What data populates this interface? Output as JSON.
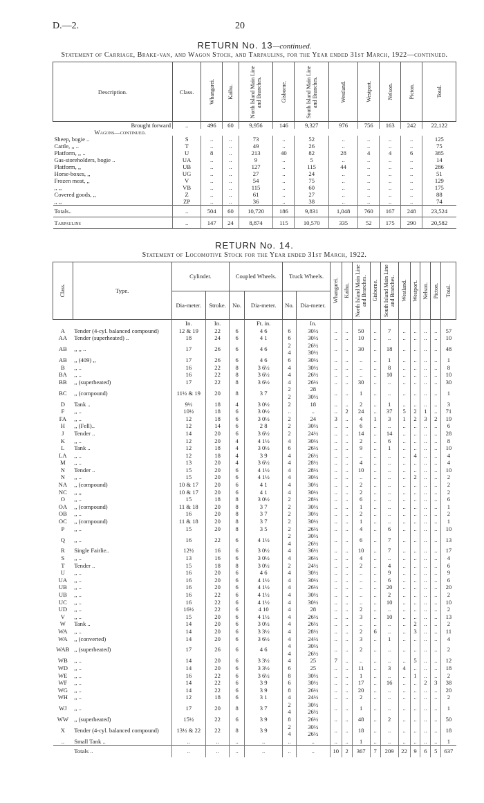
{
  "header": {
    "code": "D.—2.",
    "page": "20"
  },
  "return13": {
    "title": "RETURN No. 13",
    "title_suffix": "—continued.",
    "subtitle": "Statement of Carriage, Brake-van, and Wagon Stock, and Tarpaulins, for the Year ended 31st March, 1922—continued.",
    "columns": [
      "Description.",
      "Class.",
      "Whangarei.",
      "Kaihu.",
      "North Island Main Line and Branches.",
      "Gisborne.",
      "South Island Main Line and Branches.",
      "Westland.",
      "Westport.",
      "Nelson.",
      "Picton.",
      "Total."
    ],
    "brought_forward": [
      "Brought forward",
      "..",
      "496",
      "60",
      "9,956",
      "146",
      "9,327",
      "976",
      "756",
      "163",
      "242",
      "22,122"
    ],
    "section": "Wagons—continued.",
    "rows": [
      [
        "Sheep, bogie ..",
        "S",
        "..",
        "..",
        "73",
        "..",
        "52",
        "..",
        "..",
        "..",
        "..",
        "125"
      ],
      [
        "Cattle, ,, ..",
        "T",
        "..",
        "..",
        "49",
        "..",
        "26",
        "..",
        "..",
        "..",
        "..",
        "75"
      ],
      [
        "Platform, ,, ..",
        "U",
        "8",
        "..",
        "213",
        "40",
        "82",
        "28",
        "4",
        "4",
        "6",
        "385"
      ],
      [
        "Gas-storeholders, bogie ..",
        "UA",
        "..",
        "..",
        "9",
        "..",
        "5",
        "..",
        "..",
        "..",
        "..",
        "14"
      ],
      [
        "Platform, ,,",
        "UB",
        "..",
        "..",
        "127",
        "..",
        "115",
        "44",
        "..",
        "..",
        "..",
        "286"
      ],
      [
        "Horse-boxes, ,,",
        "UG",
        "..",
        "..",
        "27",
        "..",
        "24",
        "..",
        "..",
        "..",
        "..",
        "51"
      ],
      [
        "Frozen meat, ,,",
        "V",
        "..",
        "..",
        "54",
        "..",
        "75",
        "..",
        "..",
        "..",
        "..",
        "129"
      ],
      [
        ",, ,,",
        "VB",
        "..",
        "..",
        "115",
        "..",
        "60",
        "..",
        "..",
        "..",
        "..",
        "175"
      ],
      [
        "Covered goods, ,,",
        "Z",
        "..",
        "..",
        "61",
        "..",
        "27",
        "..",
        "..",
        "..",
        "..",
        "88"
      ],
      [
        ",, ,,",
        "ZP",
        "..",
        "..",
        "36",
        "..",
        "38",
        "..",
        "..",
        "..",
        "..",
        "74"
      ]
    ],
    "totals": [
      "Totals..",
      "..",
      "504",
      "60",
      "10,720",
      "186",
      "9,831",
      "1,048",
      "760",
      "167",
      "248",
      "23,524"
    ],
    "tarpaulins": [
      "Tarpaulins",
      "..",
      "147",
      "24",
      "8,874",
      "115",
      "10,570",
      "335",
      "52",
      "175",
      "290",
      "20,582"
    ]
  },
  "return14": {
    "title": "RETURN No. 14.",
    "subtitle": "Statement of Locomotive Stock for the Year ended 31st March, 1922.",
    "columns": {
      "class": "Class.",
      "type": "Type.",
      "cylinder": "Cylinder.",
      "coupled": "Coupled Wheels.",
      "truck": "Truck Wheels.",
      "diameter": "Dia-meter.",
      "stroke": "Stroke.",
      "no": "No.",
      "districts": [
        "Whangarei.",
        "Kaihu.",
        "North Island Main Line and Branches.",
        "Gisborne.",
        "South Island Main Line and Branches.",
        "Westland.",
        "Westport.",
        "Nelson.",
        "Picton.",
        "Total."
      ]
    },
    "units": [
      "In.",
      "In.",
      "Ft. in.",
      "In."
    ],
    "rows": [
      [
        "A",
        "Tender (4-cyl. balanced compound)",
        "12 & 19",
        "22",
        "6",
        "4 6",
        "6",
        "30½",
        "..",
        "..",
        "50",
        "..",
        "7",
        "..",
        "..",
        "..",
        "..",
        "57"
      ],
      [
        "AA",
        "Tender (superheated) ..",
        "18",
        "24",
        "6",
        "4 1",
        "6",
        "30½",
        "..",
        "..",
        "10",
        "..",
        "..",
        "..",
        "..",
        "..",
        "..",
        "10"
      ],
      [
        "AB",
        ",, ,, ..",
        "17",
        "26",
        "6",
        "4 6",
        "2\n4",
        "26½\n30½",
        "..",
        "..",
        "30",
        "..",
        "18",
        "..",
        "..",
        "..",
        "..",
        "48"
      ],
      [
        "AB",
        ",, (409) ,,",
        "17",
        "26",
        "6",
        "4 6",
        "6",
        "30½",
        "..",
        "..",
        "..",
        "..",
        "1",
        "..",
        "..",
        "..",
        "..",
        "1"
      ],
      [
        "B",
        ",, ..",
        "16",
        "22",
        "8",
        "3 6½",
        "4",
        "30½",
        "..",
        "..",
        "..",
        "..",
        "8",
        "..",
        "..",
        "..",
        "..",
        "8"
      ],
      [
        "BA",
        ",, ..",
        "16",
        "22",
        "8",
        "3 6½",
        "4",
        "26½",
        "..",
        "..",
        "..",
        "..",
        "10",
        "..",
        "..",
        "..",
        "..",
        "10"
      ],
      [
        "BB",
        ",, (superheated)",
        "17",
        "22",
        "8",
        "3 6½",
        "4",
        "26½",
        "..",
        "..",
        "30",
        "..",
        "..",
        "..",
        "..",
        "..",
        "..",
        "30"
      ],
      [
        "BC",
        ",, (compound)",
        "11½ & 19",
        "20",
        "8",
        "3 7",
        "2\n2",
        "28\n30½",
        "..",
        "..",
        "1",
        "..",
        "..",
        "..",
        "..",
        "..",
        "..",
        "1"
      ],
      [
        "D",
        "Tank ..",
        "9½",
        "18",
        "4",
        "3 0½",
        "2",
        "18",
        "..",
        "..",
        "2",
        "..",
        "1",
        "..",
        "..",
        "..",
        "..",
        "3"
      ],
      [
        "F",
        ",, ..",
        "10½",
        "18",
        "6",
        "3 0½",
        "..",
        "..",
        "..",
        "2",
        "24",
        "..",
        "37",
        "5",
        "2",
        "1",
        "..",
        "71"
      ],
      [
        "FA",
        ",, ..",
        "12",
        "18",
        "6",
        "3 0½",
        "2",
        "24",
        "3",
        "..",
        "4",
        "1",
        "3",
        "1",
        "2",
        "3",
        "2",
        "19"
      ],
      [
        "H",
        ",, (Fell)..",
        "12",
        "14",
        "6",
        "2 8",
        "2",
        "30½",
        "..",
        "..",
        "6",
        "..",
        "..",
        "..",
        "..",
        "..",
        "..",
        "6"
      ],
      [
        "J",
        "Tender ..",
        "14",
        "20",
        "6",
        "3 6½",
        "2",
        "24½",
        "..",
        "..",
        "14",
        "..",
        "14",
        "..",
        "..",
        "..",
        "..",
        "28"
      ],
      [
        "K",
        ",, ..",
        "12",
        "20",
        "4",
        "4 1½",
        "4",
        "30½",
        "..",
        "..",
        "2",
        "..",
        "6",
        "..",
        "..",
        "..",
        "..",
        "8"
      ],
      [
        "L",
        "Tank ..",
        "12",
        "18",
        "4",
        "3 0½",
        "6",
        "26½",
        "..",
        "..",
        "9",
        "..",
        "1",
        "..",
        "..",
        "..",
        "..",
        "10"
      ],
      [
        "LA",
        ",, ..",
        "12",
        "18",
        "4",
        "3 9",
        "4",
        "26½",
        "..",
        "..",
        "..",
        "..",
        "..",
        "..",
        "4",
        "..",
        "..",
        "4"
      ],
      [
        "M",
        ",, ..",
        "13",
        "20",
        "4",
        "3 6½",
        "4",
        "28½",
        "..",
        "..",
        "4",
        "..",
        "..",
        "..",
        "..",
        "..",
        "..",
        "4"
      ],
      [
        "N",
        "Tender ..",
        "15",
        "20",
        "6",
        "4 1½",
        "4",
        "28½",
        "..",
        "..",
        "10",
        "..",
        "..",
        "..",
        "..",
        "..",
        "..",
        "10"
      ],
      [
        "N",
        ",, ..",
        "15",
        "20",
        "6",
        "4 1½",
        "4",
        "30½",
        "..",
        "..",
        "..",
        "..",
        "..",
        "..",
        "2",
        "..",
        "..",
        "2"
      ],
      [
        "NA",
        ",, (compound)",
        "10 & 17",
        "20",
        "6",
        "4 1",
        "4",
        "30½",
        "..",
        "..",
        "2",
        "..",
        "..",
        "..",
        "..",
        "..",
        "..",
        "2"
      ],
      [
        "NC",
        ",, ,,",
        "10 & 17",
        "20",
        "6",
        "4 1",
        "4",
        "30½",
        "..",
        "..",
        "2",
        "..",
        "..",
        "..",
        "..",
        "..",
        "..",
        "2"
      ],
      [
        "O",
        ",, ..",
        "15",
        "18",
        "8",
        "3 0½",
        "2",
        "28½",
        "..",
        "..",
        "6",
        "..",
        "..",
        "..",
        "..",
        "..",
        "..",
        "6"
      ],
      [
        "OA",
        ",, (compound)",
        "11 & 18",
        "20",
        "8",
        "3 7",
        "2",
        "30½",
        "..",
        "..",
        "1",
        "..",
        "..",
        "..",
        "..",
        "..",
        "..",
        "1"
      ],
      [
        "OB",
        ",, ..",
        "16",
        "20",
        "8",
        "3 7",
        "2",
        "30½",
        "..",
        "..",
        "2",
        "..",
        "..",
        "..",
        "..",
        "..",
        "..",
        "2"
      ],
      [
        "OC",
        ",, (compound)",
        "11 & 18",
        "20",
        "8",
        "3 7",
        "2",
        "30½",
        "..",
        "..",
        "1",
        "..",
        "..",
        "..",
        "..",
        "..",
        "..",
        "1"
      ],
      [
        "P",
        ",, ..",
        "15",
        "20",
        "8",
        "3 5",
        "2",
        "26½",
        "..",
        "..",
        "4",
        "..",
        "6",
        "..",
        "..",
        "..",
        "..",
        "10"
      ],
      [
        "Q",
        ",, ..",
        "16",
        "22",
        "6",
        "4 1½",
        "2\n4",
        "30½\n26½",
        "..",
        "..",
        "6",
        "..",
        "7",
        "..",
        "..",
        "..",
        "..",
        "13"
      ],
      [
        "R",
        "Single Fairlie..",
        "12½",
        "16",
        "6",
        "3 0½",
        "4",
        "36½",
        "..",
        "..",
        "10",
        "..",
        "7",
        "..",
        "..",
        "..",
        "..",
        "17"
      ],
      [
        "S",
        ",, ..",
        "13",
        "16",
        "6",
        "3 0½",
        "4",
        "36½",
        "..",
        "..",
        "4",
        "..",
        "..",
        "..",
        "..",
        "..",
        "..",
        "4"
      ],
      [
        "T",
        "Tender ..",
        "15",
        "18",
        "8",
        "3 0½",
        "2",
        "24½",
        "..",
        "..",
        "2",
        "..",
        "4",
        "..",
        "..",
        "..",
        "..",
        "6"
      ],
      [
        "U",
        ",, ..",
        "16",
        "20",
        "6",
        "4 6",
        "4",
        "30½",
        "..",
        "..",
        "..",
        "..",
        "9",
        "..",
        "..",
        "..",
        "..",
        "9"
      ],
      [
        "UA",
        ",, ..",
        "16",
        "20",
        "6",
        "4 1½",
        "4",
        "30½",
        "..",
        "..",
        "..",
        "..",
        "6",
        "..",
        "..",
        "..",
        "..",
        "6"
      ],
      [
        "UB",
        ",, ..",
        "16",
        "20",
        "6",
        "4 1½",
        "4",
        "26½",
        "..",
        "..",
        "..",
        "..",
        "20",
        "..",
        "..",
        "..",
        "..",
        "20"
      ],
      [
        "UB",
        ",, ..",
        "16",
        "22",
        "6",
        "4 1½",
        "4",
        "30½",
        "..",
        "..",
        "..",
        "..",
        "2",
        "..",
        "..",
        "..",
        "..",
        "2"
      ],
      [
        "UC",
        ",, ..",
        "16",
        "22",
        "6",
        "4 1½",
        "4",
        "30½",
        "..",
        "..",
        "..",
        "..",
        "10",
        "..",
        "..",
        "..",
        "..",
        "10"
      ],
      [
        "UD",
        ",, ..",
        "16½",
        "22",
        "6",
        "4 10",
        "4",
        "28",
        "..",
        "..",
        "2",
        "..",
        "..",
        "..",
        "..",
        "..",
        "..",
        "2"
      ],
      [
        "V",
        ",, ..",
        "15",
        "20",
        "6",
        "4 1½",
        "4",
        "26½",
        "..",
        "..",
        "3",
        "..",
        "10",
        "..",
        "..",
        "..",
        "..",
        "13"
      ],
      [
        "W",
        "Tank ..",
        "14",
        "20",
        "6",
        "3 0½",
        "4",
        "26½",
        "..",
        "..",
        "..",
        "..",
        "..",
        "..",
        "2",
        "..",
        "..",
        "2"
      ],
      [
        "WA",
        ",, ..",
        "14",
        "20",
        "6",
        "3 3½",
        "4",
        "28½",
        "..",
        "..",
        "2",
        "6",
        "..",
        "..",
        "3",
        "..",
        "..",
        "11"
      ],
      [
        "WA",
        ",, (converted)",
        "14",
        "20",
        "6",
        "3 6½",
        "4",
        "24½",
        "..",
        "..",
        "3",
        "..",
        "1",
        "..",
        "..",
        "..",
        "..",
        "4"
      ],
      [
        "WAB",
        ",, (superheated)",
        "17",
        "26",
        "6",
        "4 6",
        "4\n4",
        "30½\n26½",
        "..",
        "..",
        "2",
        "..",
        "..",
        "..",
        "..",
        "..",
        "..",
        "2"
      ],
      [
        "WB",
        ",, ..",
        "14",
        "20",
        "6",
        "3 3½",
        "4",
        "25",
        "7",
        "..",
        "..",
        "..",
        "..",
        "..",
        "5",
        "..",
        "..",
        "12"
      ],
      [
        "WD",
        ",, ..",
        "14",
        "20",
        "6",
        "3 3½",
        "6",
        "25",
        "..",
        "..",
        "11",
        "..",
        "3",
        "4",
        "..",
        "..",
        "..",
        "18"
      ],
      [
        "WE",
        ",, ..",
        "16",
        "22",
        "6",
        "3 6½",
        "8",
        "30½",
        "..",
        "..",
        "1",
        "..",
        "..",
        "..",
        "1",
        "..",
        "..",
        "2"
      ],
      [
        "WF",
        ",, ..",
        "14",
        "22",
        "6",
        "3 9",
        "6",
        "30½",
        "..",
        "..",
        "17",
        "..",
        "16",
        "..",
        "..",
        "2",
        "3",
        "38"
      ],
      [
        "WG",
        ",, ..",
        "14",
        "22",
        "6",
        "3 9",
        "8",
        "26½",
        "..",
        "..",
        "20",
        "..",
        "..",
        "..",
        "..",
        "..",
        "..",
        "20"
      ],
      [
        "WH",
        ",, ..",
        "12",
        "18",
        "6",
        "3 1",
        "4",
        "24½",
        "..",
        "..",
        "2",
        "..",
        "..",
        "..",
        "..",
        "..",
        "..",
        "2"
      ],
      [
        "WJ",
        ",, ..",
        "17",
        "20",
        "8",
        "3 7",
        "2\n4",
        "30½\n26½",
        "..",
        "..",
        "1",
        "..",
        "..",
        "..",
        "..",
        "..",
        "..",
        "1"
      ],
      [
        "WW",
        ",, (superheated)",
        "15½",
        "22",
        "6",
        "3 9",
        "8",
        "26½",
        "..",
        "..",
        "48",
        "..",
        "2",
        "..",
        "..",
        "..",
        "..",
        "50"
      ],
      [
        "X",
        "Tender (4-cyl. balanced compound)",
        "13½ & 22",
        "22",
        "8",
        "3 9",
        "2\n4",
        "30½\n26½",
        "..",
        "..",
        "18",
        "..",
        "..",
        "..",
        "..",
        "..",
        "..",
        "18"
      ],
      [
        "..",
        "Small Tank ..",
        "..",
        "..",
        "..",
        "..",
        "..",
        "..",
        "..",
        "..",
        "1",
        "..",
        "..",
        "..",
        "..",
        "..",
        "..",
        "1"
      ]
    ],
    "totals": [
      "",
      "Totals ..",
      "..",
      "..",
      "..",
      "..",
      "..",
      "..",
      "10",
      "2",
      "367",
      "7",
      "209",
      "22",
      "9",
      "6",
      "5",
      "637"
    ]
  }
}
